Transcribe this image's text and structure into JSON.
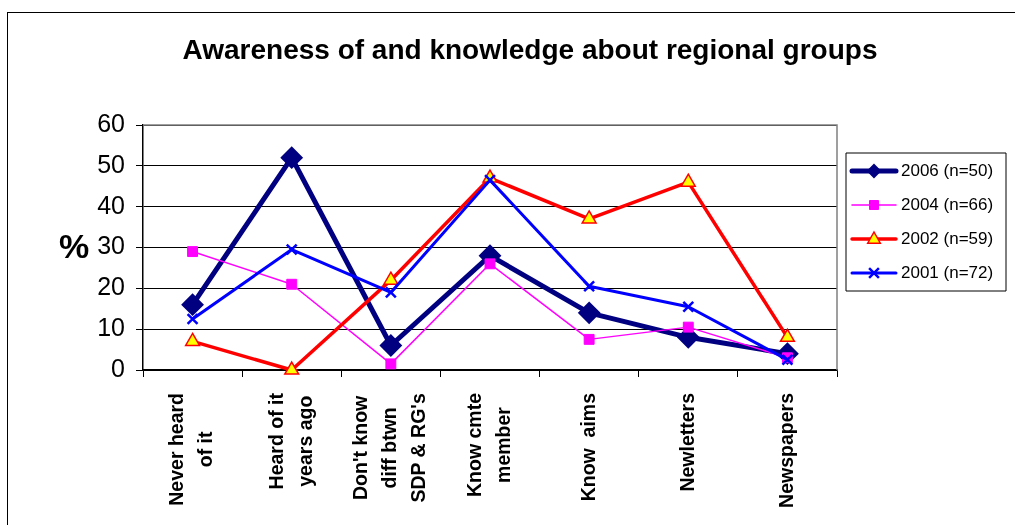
{
  "chart_data": {
    "type": "line",
    "title": "Awareness of and knowledge about regional groups",
    "ylabel": "%",
    "categories": [
      "Never heard of it",
      "Heard of it years ago",
      "Don't know diff btwn SDP & RG's",
      "Know cmte member",
      "Know  aims",
      "Newletters",
      "Newspapers"
    ],
    "series": [
      {
        "name": "2006 (n=50)",
        "color": "#000080",
        "marker": "diamond",
        "values": [
          16,
          52,
          6,
          28,
          14,
          8,
          4
        ]
      },
      {
        "name": "2004 (n=66)",
        "color": "#ff00ff",
        "marker": "square",
        "values": [
          29,
          21,
          1.5,
          26,
          7.5,
          10.5,
          3
        ]
      },
      {
        "name": "2002 (n=59)",
        "color": "#ff0000",
        "marker": "triangle",
        "values": [
          7,
          0,
          22,
          47,
          37,
          46,
          8
        ]
      },
      {
        "name": "2001 (n=72)",
        "color": "#0000ff",
        "marker": "cross",
        "values": [
          12.5,
          29.5,
          19,
          46.5,
          20.5,
          15.5,
          2.5
        ]
      }
    ],
    "ylim": [
      0,
      60
    ],
    "yticks": [
      0,
      10,
      20,
      30,
      40,
      50,
      60
    ],
    "grid": "y",
    "legend": "right"
  }
}
